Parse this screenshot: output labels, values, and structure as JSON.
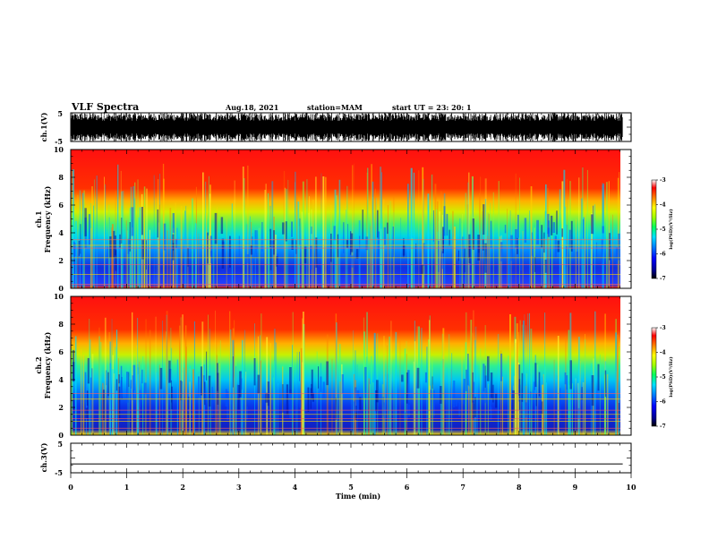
{
  "header": {
    "title": "VLF Spectra",
    "date": "Aug.18, 2021",
    "station": "station=MAM",
    "start": "start  UT =   23: 20: 1"
  },
  "chart_data": [
    {
      "type": "line",
      "panel": "ch1-waveform",
      "ylabel": "ch.1(V)",
      "ylim": [
        -5,
        5
      ],
      "yticks": [
        "5",
        "-5"
      ],
      "xlim": [
        0,
        10
      ],
      "waveform": "dense broadband noise near full scale",
      "color": "#000000"
    },
    {
      "type": "heatmap",
      "panel": "ch1-spectrogram",
      "ylabel_1": "ch.1",
      "ylabel_2": "Frequency (kHz)",
      "ylim": [
        0,
        10
      ],
      "yticks": [
        "0",
        "2",
        "4",
        "6",
        "8",
        "10"
      ],
      "xlim": [
        0,
        9.85
      ],
      "colorbar": {
        "label": "log(PSD)(V²/Hz)",
        "range": [
          -7,
          -3
        ],
        "ticks": [
          "-3",
          "-4",
          "-5",
          "-6",
          "-7"
        ]
      },
      "band_frequencies_khz": [
        0.3,
        1.0,
        1.7,
        2.2,
        2.9,
        3.1,
        3.5
      ]
    },
    {
      "type": "heatmap",
      "panel": "ch2-spectrogram",
      "ylabel_1": "ch.2",
      "ylabel_2": "Frequency (kHz)",
      "ylim": [
        0,
        10
      ],
      "yticks": [
        "0",
        "2",
        "4",
        "6",
        "8",
        "10"
      ],
      "xlim": [
        0,
        9.85
      ],
      "colorbar": {
        "label": "log(PSD)(V²/Hz)",
        "range": [
          -7,
          -3
        ],
        "ticks": [
          "-3",
          "-4",
          "-5",
          "-6",
          "-7"
        ]
      },
      "band_frequencies_khz": [
        0.5,
        1.0,
        1.2,
        1.5,
        1.8,
        2.6,
        3.0
      ]
    },
    {
      "type": "line",
      "panel": "ch3-waveform",
      "ylabel": "ch.3(V)",
      "ylim": [
        -5,
        5
      ],
      "yticks": [
        "5",
        "-5"
      ],
      "xlim": [
        0,
        10
      ],
      "values": [
        -2,
        -2
      ],
      "x": [
        0,
        9.85
      ],
      "color": "#000000"
    }
  ],
  "xaxis": {
    "label": "Time (min)",
    "ticks": [
      "0",
      "1",
      "2",
      "3",
      "4",
      "5",
      "6",
      "7",
      "8",
      "9",
      "10"
    ]
  }
}
